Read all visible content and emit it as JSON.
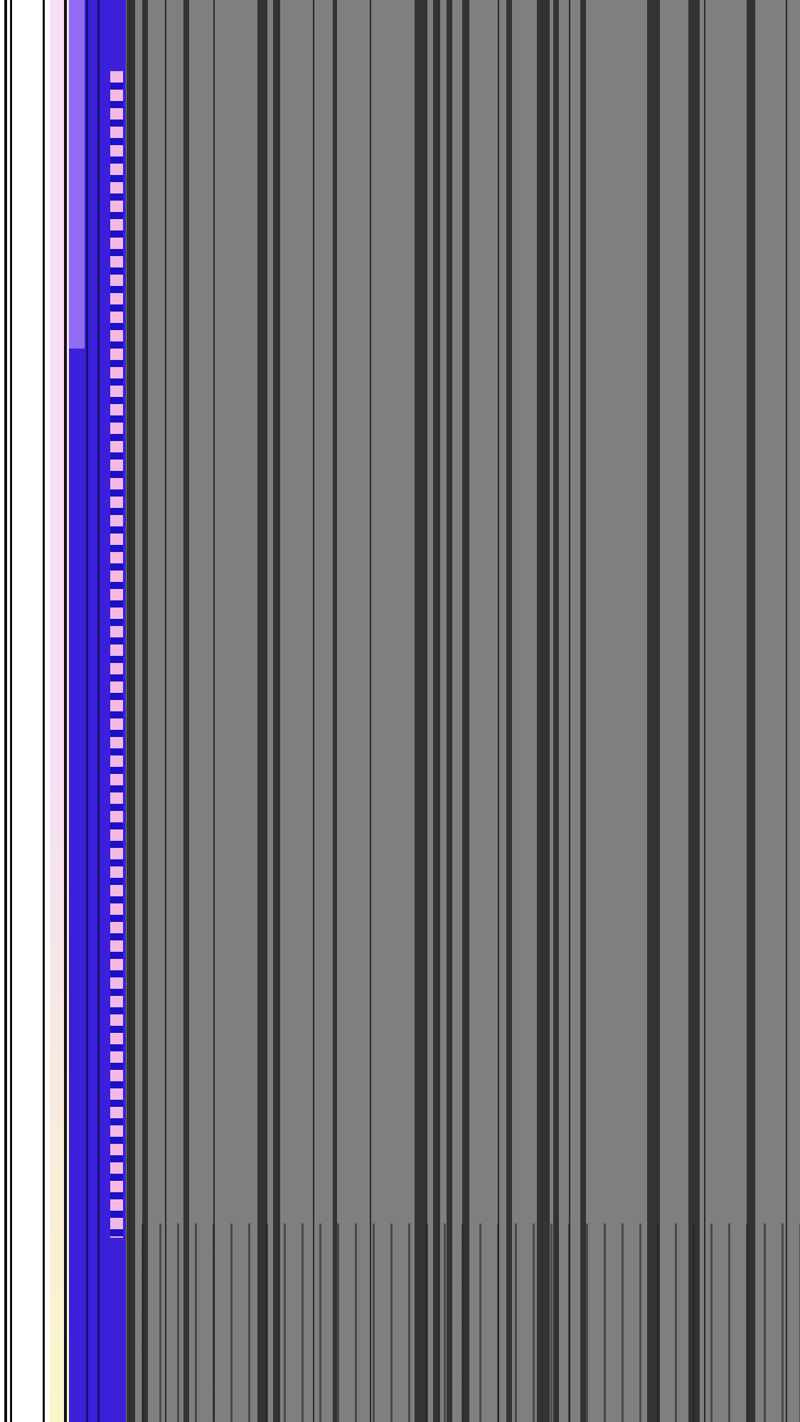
{
  "screen": {
    "description_label": "",
    "colors": {
      "background": "#7f7f7f",
      "stripe": "#333333",
      "band": "#3b1fd9",
      "band_violet": "#8f6cf2",
      "band_pink": "#f3b9e6",
      "left_white": "#ffffff",
      "left_pale": "#f6dff4"
    }
  }
}
